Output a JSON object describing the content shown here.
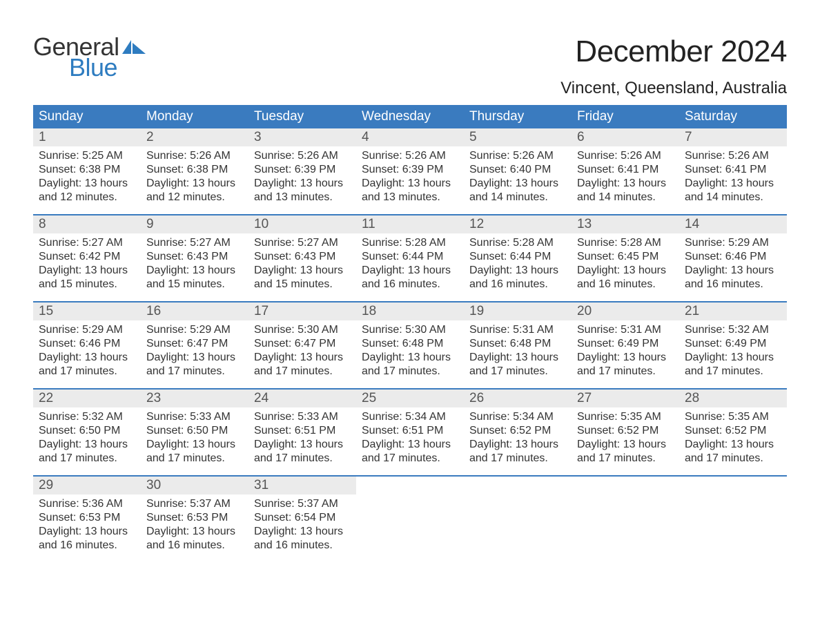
{
  "logo": {
    "general": "General",
    "blue": "Blue",
    "sail_color": "#2e7cc0"
  },
  "title": "December 2024",
  "location": "Vincent, Queensland, Australia",
  "colors": {
    "header_bg": "#3a7bbf",
    "header_text": "#ffffff",
    "week_border": "#3a7bbf",
    "daynum_bg": "#ebebeb",
    "daynum_text": "#555555",
    "body_text": "#333333",
    "page_bg": "#ffffff",
    "logo_blue": "#2e7cc0"
  },
  "typography": {
    "title_fontsize": 44,
    "location_fontsize": 24,
    "dow_fontsize": 19,
    "daynum_fontsize": 19,
    "body_fontsize": 16,
    "font_family": "Arial"
  },
  "dow": [
    "Sunday",
    "Monday",
    "Tuesday",
    "Wednesday",
    "Thursday",
    "Friday",
    "Saturday"
  ],
  "weeks": [
    [
      {
        "n": "1",
        "sunrise": "Sunrise: 5:25 AM",
        "sunset": "Sunset: 6:38 PM",
        "d1": "Daylight: 13 hours",
        "d2": "and 12 minutes."
      },
      {
        "n": "2",
        "sunrise": "Sunrise: 5:26 AM",
        "sunset": "Sunset: 6:38 PM",
        "d1": "Daylight: 13 hours",
        "d2": "and 12 minutes."
      },
      {
        "n": "3",
        "sunrise": "Sunrise: 5:26 AM",
        "sunset": "Sunset: 6:39 PM",
        "d1": "Daylight: 13 hours",
        "d2": "and 13 minutes."
      },
      {
        "n": "4",
        "sunrise": "Sunrise: 5:26 AM",
        "sunset": "Sunset: 6:39 PM",
        "d1": "Daylight: 13 hours",
        "d2": "and 13 minutes."
      },
      {
        "n": "5",
        "sunrise": "Sunrise: 5:26 AM",
        "sunset": "Sunset: 6:40 PM",
        "d1": "Daylight: 13 hours",
        "d2": "and 14 minutes."
      },
      {
        "n": "6",
        "sunrise": "Sunrise: 5:26 AM",
        "sunset": "Sunset: 6:41 PM",
        "d1": "Daylight: 13 hours",
        "d2": "and 14 minutes."
      },
      {
        "n": "7",
        "sunrise": "Sunrise: 5:26 AM",
        "sunset": "Sunset: 6:41 PM",
        "d1": "Daylight: 13 hours",
        "d2": "and 14 minutes."
      }
    ],
    [
      {
        "n": "8",
        "sunrise": "Sunrise: 5:27 AM",
        "sunset": "Sunset: 6:42 PM",
        "d1": "Daylight: 13 hours",
        "d2": "and 15 minutes."
      },
      {
        "n": "9",
        "sunrise": "Sunrise: 5:27 AM",
        "sunset": "Sunset: 6:43 PM",
        "d1": "Daylight: 13 hours",
        "d2": "and 15 minutes."
      },
      {
        "n": "10",
        "sunrise": "Sunrise: 5:27 AM",
        "sunset": "Sunset: 6:43 PM",
        "d1": "Daylight: 13 hours",
        "d2": "and 15 minutes."
      },
      {
        "n": "11",
        "sunrise": "Sunrise: 5:28 AM",
        "sunset": "Sunset: 6:44 PM",
        "d1": "Daylight: 13 hours",
        "d2": "and 16 minutes."
      },
      {
        "n": "12",
        "sunrise": "Sunrise: 5:28 AM",
        "sunset": "Sunset: 6:44 PM",
        "d1": "Daylight: 13 hours",
        "d2": "and 16 minutes."
      },
      {
        "n": "13",
        "sunrise": "Sunrise: 5:28 AM",
        "sunset": "Sunset: 6:45 PM",
        "d1": "Daylight: 13 hours",
        "d2": "and 16 minutes."
      },
      {
        "n": "14",
        "sunrise": "Sunrise: 5:29 AM",
        "sunset": "Sunset: 6:46 PM",
        "d1": "Daylight: 13 hours",
        "d2": "and 16 minutes."
      }
    ],
    [
      {
        "n": "15",
        "sunrise": "Sunrise: 5:29 AM",
        "sunset": "Sunset: 6:46 PM",
        "d1": "Daylight: 13 hours",
        "d2": "and 17 minutes."
      },
      {
        "n": "16",
        "sunrise": "Sunrise: 5:29 AM",
        "sunset": "Sunset: 6:47 PM",
        "d1": "Daylight: 13 hours",
        "d2": "and 17 minutes."
      },
      {
        "n": "17",
        "sunrise": "Sunrise: 5:30 AM",
        "sunset": "Sunset: 6:47 PM",
        "d1": "Daylight: 13 hours",
        "d2": "and 17 minutes."
      },
      {
        "n": "18",
        "sunrise": "Sunrise: 5:30 AM",
        "sunset": "Sunset: 6:48 PM",
        "d1": "Daylight: 13 hours",
        "d2": "and 17 minutes."
      },
      {
        "n": "19",
        "sunrise": "Sunrise: 5:31 AM",
        "sunset": "Sunset: 6:48 PM",
        "d1": "Daylight: 13 hours",
        "d2": "and 17 minutes."
      },
      {
        "n": "20",
        "sunrise": "Sunrise: 5:31 AM",
        "sunset": "Sunset: 6:49 PM",
        "d1": "Daylight: 13 hours",
        "d2": "and 17 minutes."
      },
      {
        "n": "21",
        "sunrise": "Sunrise: 5:32 AM",
        "sunset": "Sunset: 6:49 PM",
        "d1": "Daylight: 13 hours",
        "d2": "and 17 minutes."
      }
    ],
    [
      {
        "n": "22",
        "sunrise": "Sunrise: 5:32 AM",
        "sunset": "Sunset: 6:50 PM",
        "d1": "Daylight: 13 hours",
        "d2": "and 17 minutes."
      },
      {
        "n": "23",
        "sunrise": "Sunrise: 5:33 AM",
        "sunset": "Sunset: 6:50 PM",
        "d1": "Daylight: 13 hours",
        "d2": "and 17 minutes."
      },
      {
        "n": "24",
        "sunrise": "Sunrise: 5:33 AM",
        "sunset": "Sunset: 6:51 PM",
        "d1": "Daylight: 13 hours",
        "d2": "and 17 minutes."
      },
      {
        "n": "25",
        "sunrise": "Sunrise: 5:34 AM",
        "sunset": "Sunset: 6:51 PM",
        "d1": "Daylight: 13 hours",
        "d2": "and 17 minutes."
      },
      {
        "n": "26",
        "sunrise": "Sunrise: 5:34 AM",
        "sunset": "Sunset: 6:52 PM",
        "d1": "Daylight: 13 hours",
        "d2": "and 17 minutes."
      },
      {
        "n": "27",
        "sunrise": "Sunrise: 5:35 AM",
        "sunset": "Sunset: 6:52 PM",
        "d1": "Daylight: 13 hours",
        "d2": "and 17 minutes."
      },
      {
        "n": "28",
        "sunrise": "Sunrise: 5:35 AM",
        "sunset": "Sunset: 6:52 PM",
        "d1": "Daylight: 13 hours",
        "d2": "and 17 minutes."
      }
    ],
    [
      {
        "n": "29",
        "sunrise": "Sunrise: 5:36 AM",
        "sunset": "Sunset: 6:53 PM",
        "d1": "Daylight: 13 hours",
        "d2": "and 16 minutes."
      },
      {
        "n": "30",
        "sunrise": "Sunrise: 5:37 AM",
        "sunset": "Sunset: 6:53 PM",
        "d1": "Daylight: 13 hours",
        "d2": "and 16 minutes."
      },
      {
        "n": "31",
        "sunrise": "Sunrise: 5:37 AM",
        "sunset": "Sunset: 6:54 PM",
        "d1": "Daylight: 13 hours",
        "d2": "and 16 minutes."
      },
      null,
      null,
      null,
      null
    ]
  ]
}
